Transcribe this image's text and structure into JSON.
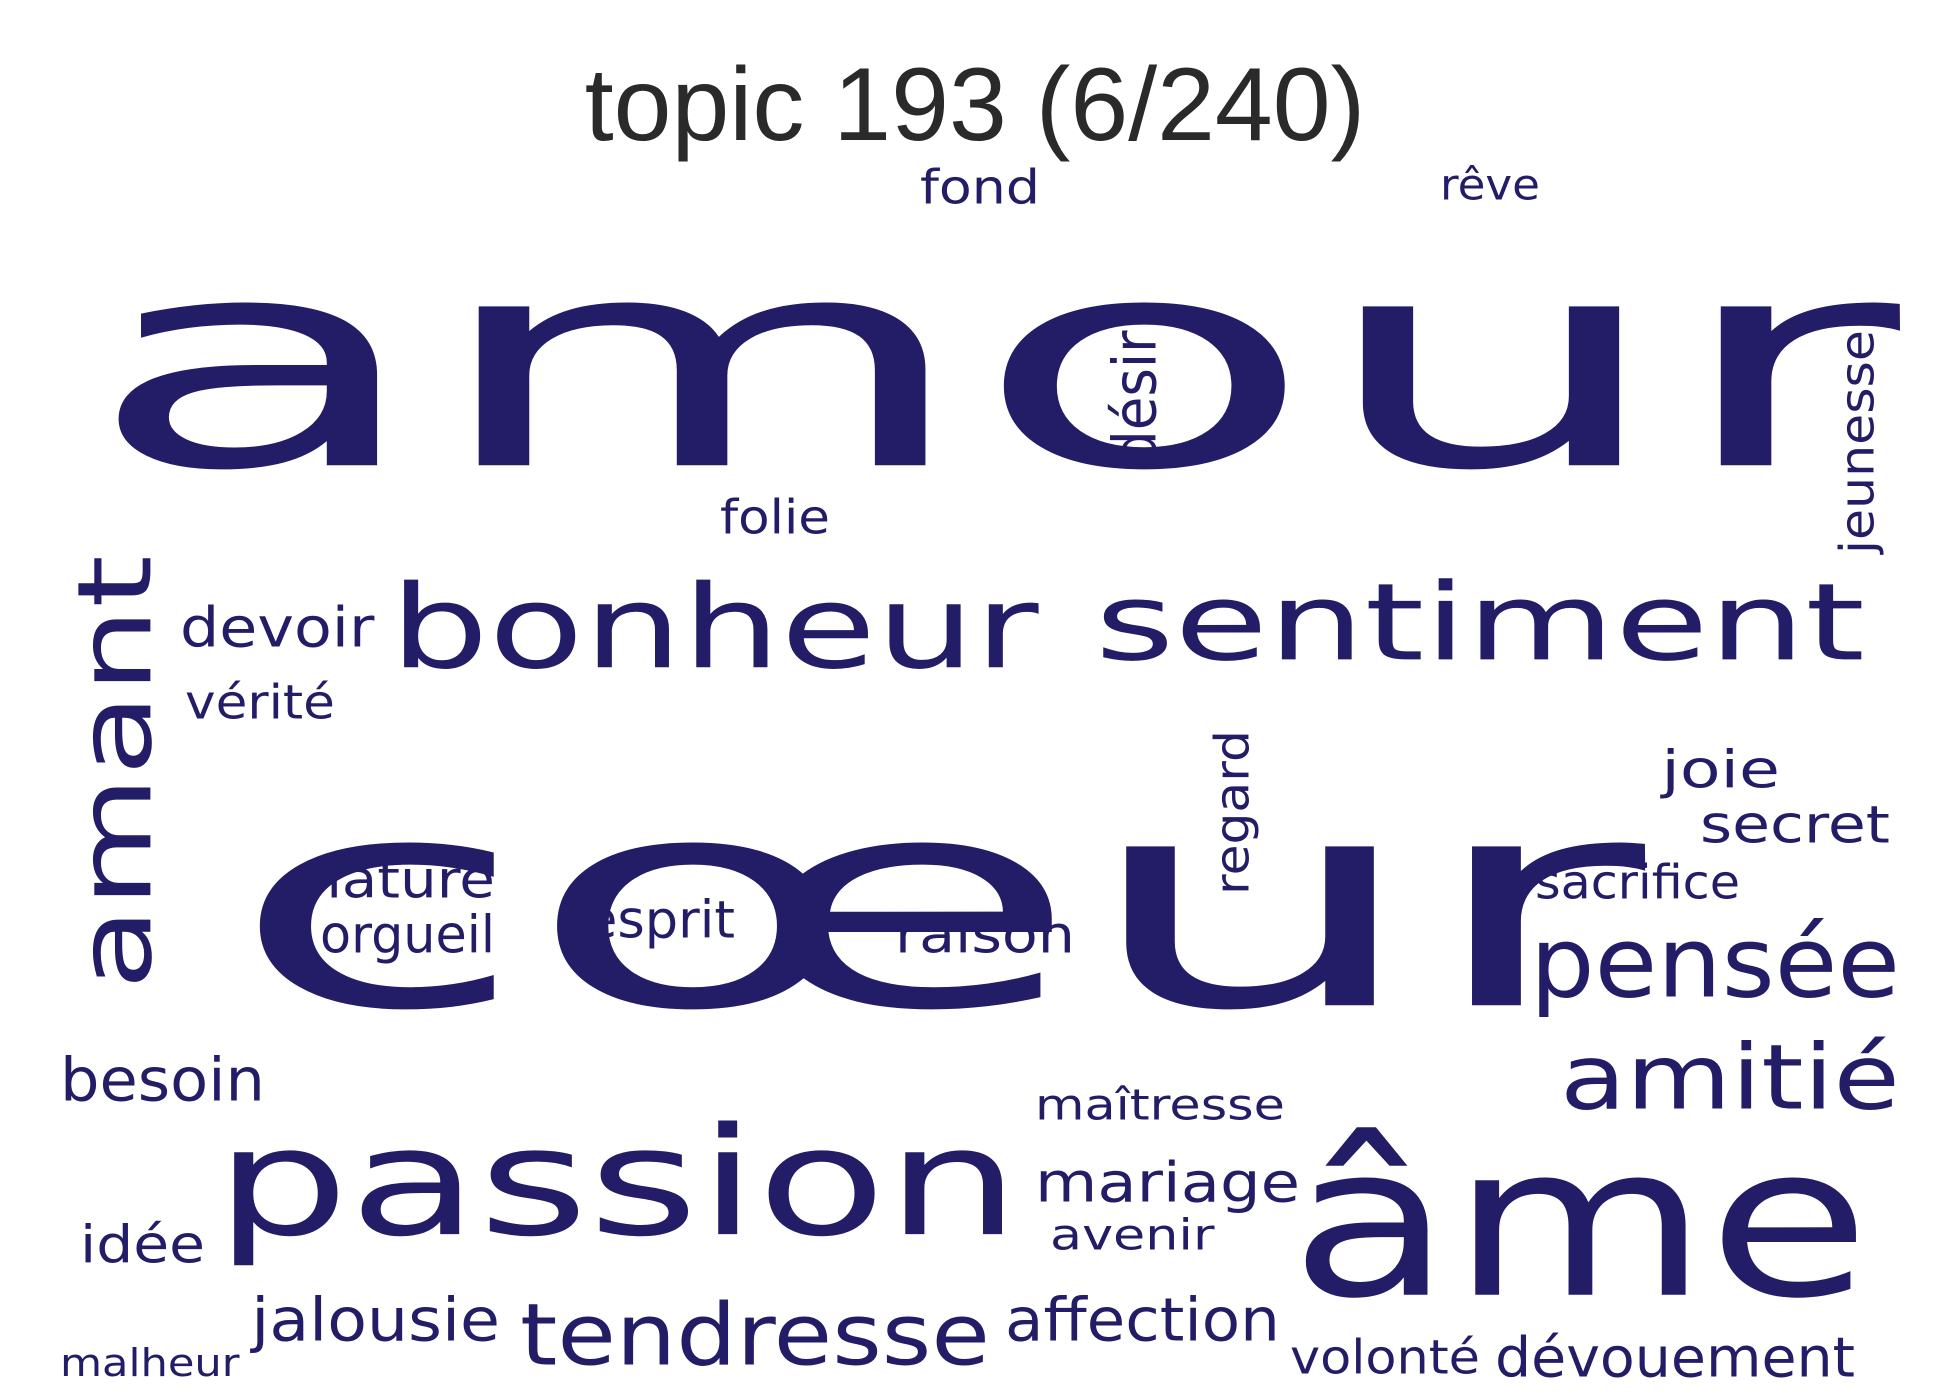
{
  "title": "topic 193 (6/240)",
  "colors": {
    "word": "#221d66",
    "title": "#2a2a2a",
    "background": "#ffffff"
  },
  "words": [
    {
      "text": "amour",
      "orientation": "horizontal"
    },
    {
      "text": "cœur",
      "orientation": "horizontal"
    },
    {
      "text": "passion",
      "orientation": "horizontal"
    },
    {
      "text": "âme",
      "orientation": "horizontal"
    },
    {
      "text": "bonheur",
      "orientation": "horizontal"
    },
    {
      "text": "sentiment",
      "orientation": "horizontal"
    },
    {
      "text": "amant",
      "orientation": "vertical"
    },
    {
      "text": "pensée",
      "orientation": "horizontal"
    },
    {
      "text": "amitié",
      "orientation": "horizontal"
    },
    {
      "text": "tendresse",
      "orientation": "horizontal"
    },
    {
      "text": "désir",
      "orientation": "vertical"
    },
    {
      "text": "affection",
      "orientation": "horizontal"
    },
    {
      "text": "dévouement",
      "orientation": "horizontal"
    },
    {
      "text": "jalousie",
      "orientation": "horizontal"
    },
    {
      "text": "besoin",
      "orientation": "horizontal"
    },
    {
      "text": "jeunesse",
      "orientation": "vertical"
    },
    {
      "text": "mariage",
      "orientation": "horizontal"
    },
    {
      "text": "secret",
      "orientation": "horizontal"
    },
    {
      "text": "joie",
      "orientation": "horizontal"
    },
    {
      "text": "raison",
      "orientation": "horizontal"
    },
    {
      "text": "devoir",
      "orientation": "horizontal"
    },
    {
      "text": "nature",
      "orientation": "horizontal"
    },
    {
      "text": "esprit",
      "orientation": "horizontal"
    },
    {
      "text": "orgueil",
      "orientation": "horizontal"
    },
    {
      "text": "regard",
      "orientation": "vertical"
    },
    {
      "text": "fond",
      "orientation": "horizontal"
    },
    {
      "text": "folie",
      "orientation": "horizontal"
    },
    {
      "text": "idée",
      "orientation": "horizontal"
    },
    {
      "text": "volonté",
      "orientation": "horizontal"
    },
    {
      "text": "avenir",
      "orientation": "horizontal"
    },
    {
      "text": "maîtresse",
      "orientation": "horizontal"
    },
    {
      "text": "sacrifice",
      "orientation": "horizontal"
    },
    {
      "text": "rêve",
      "orientation": "horizontal"
    },
    {
      "text": "vérité",
      "orientation": "horizontal"
    },
    {
      "text": "malheur",
      "orientation": "horizontal"
    }
  ]
}
